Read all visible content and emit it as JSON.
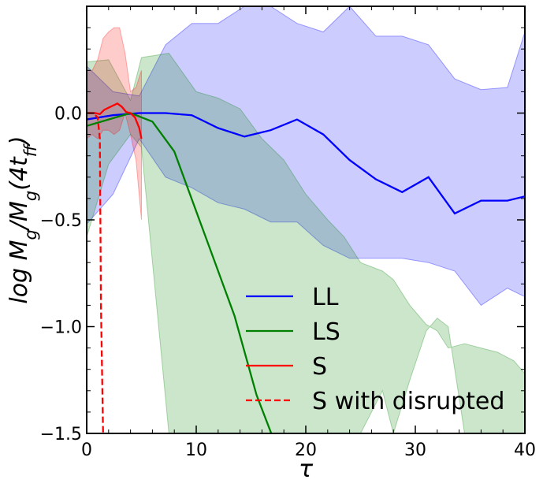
{
  "chart_data": {
    "type": "line",
    "xlabel": "τ",
    "ylabel": "log M_g/M_g(4t_ff)",
    "xlim": [
      0,
      40
    ],
    "ylim": [
      -1.5,
      0.5
    ],
    "x_ticks": [
      0,
      10,
      20,
      30,
      40
    ],
    "y_ticks": [
      -1.5,
      -1.0,
      -0.5,
      0.0
    ],
    "x_tick_labels": [
      "0",
      "10",
      "20",
      "30",
      "40"
    ],
    "y_tick_labels": [
      "−1.5",
      "−1.0",
      "−0.5",
      "0.0"
    ],
    "grid": false,
    "legend_position": "lower-right",
    "series": [
      {
        "name": "LL",
        "color": "#0000ff",
        "style": "solid",
        "x": [
          0,
          2.4,
          4.8,
          7.2,
          9.6,
          12,
          14.4,
          16.8,
          19.2,
          21.6,
          24,
          26.4,
          28.8,
          31.2,
          33.6,
          36,
          38.4,
          40
        ],
        "y": [
          -0.03,
          -0.01,
          0.0,
          0.0,
          -0.01,
          -0.07,
          -0.11,
          -0.08,
          -0.03,
          -0.1,
          -0.22,
          -0.31,
          -0.37,
          -0.3,
          -0.47,
          -0.41,
          -0.41,
          -0.39
        ],
        "band_upper": [
          0.22,
          0.1,
          0.08,
          0.32,
          0.42,
          0.42,
          0.52,
          0.5,
          0.42,
          0.38,
          0.5,
          0.36,
          0.36,
          0.32,
          0.16,
          0.11,
          0.12,
          0.38
        ],
        "band_lower": [
          -0.52,
          -0.38,
          -0.12,
          -0.3,
          -0.35,
          -0.42,
          -0.45,
          -0.51,
          -0.51,
          -0.62,
          -0.68,
          -0.68,
          -0.68,
          -0.7,
          -0.74,
          -0.9,
          -0.82,
          -0.86
        ]
      },
      {
        "name": "LS",
        "color": "#008000",
        "style": "solid",
        "x": [
          0,
          2,
          4,
          6,
          8,
          10,
          11.5,
          13.5,
          15.5,
          17
        ],
        "y": [
          -0.06,
          -0.03,
          0.0,
          -0.04,
          -0.18,
          -0.46,
          -0.67,
          -0.95,
          -1.32,
          -1.52
        ],
        "band_upper": [
          0.24,
          0.25,
          0.06,
          0.26,
          0.28,
          0.1,
          0.07,
          0.02,
          -0.12,
          -0.22,
          -0.38,
          -0.5,
          -0.58,
          -0.7,
          -0.74,
          -0.78,
          -0.9,
          -0.99,
          -1.02,
          -1.1,
          -1.08,
          -1.1,
          -1.12,
          -1.16,
          -1.22
        ],
        "band_lower": [
          -0.58,
          -0.24,
          -0.1,
          -0.16,
          -1.5,
          -1.5,
          -1.5,
          -1.5,
          -1.5,
          -1.5,
          -1.5,
          -1.5,
          -1.5,
          -1.5,
          -1.3,
          -1.5,
          -1.25,
          -1.02,
          -0.96,
          -1.0,
          -1.5,
          -1.5,
          -1.5,
          -1.5,
          -1.5
        ],
        "band_x": [
          0,
          2,
          4,
          5,
          7.5,
          10,
          12,
          14,
          16,
          18,
          20,
          22,
          23.5,
          25,
          27,
          28,
          29.5,
          31,
          32,
          33,
          34.5,
          36,
          37.5,
          39,
          40
        ]
      },
      {
        "name": "S",
        "color": "#ff0000",
        "style": "solid",
        "x": [
          0,
          0.4,
          0.8,
          1.2,
          1.6,
          2.0,
          2.4,
          2.8,
          3.2,
          3.6,
          4.0,
          4.4,
          4.8,
          5.0
        ],
        "y": [
          0.0,
          0.0,
          0.0,
          -0.005,
          0.015,
          0.025,
          0.035,
          0.045,
          0.03,
          0.005,
          0.0,
          -0.02,
          -0.07,
          -0.12
        ],
        "band_x": [
          0,
          0.5,
          1.0,
          1.5,
          2.0,
          2.5,
          3.0,
          3.5,
          4.0,
          4.5,
          5.0
        ],
        "band_upper": [
          0.2,
          0.2,
          0.25,
          0.35,
          0.38,
          0.4,
          0.4,
          0.28,
          0.1,
          0.12,
          0.2
        ],
        "band_lower": [
          -0.12,
          -0.1,
          -0.12,
          -0.08,
          -0.08,
          -0.1,
          -0.08,
          0.0,
          -0.1,
          -0.22,
          -0.5
        ]
      },
      {
        "name": "S with disrupted",
        "color": "#ff0000",
        "style": "dashed",
        "x": [
          0,
          0.6,
          1.0,
          1.2,
          1.3,
          1.5
        ],
        "y": [
          0.0,
          0.0,
          -0.02,
          -0.12,
          -0.9,
          -1.5
        ]
      }
    ]
  }
}
